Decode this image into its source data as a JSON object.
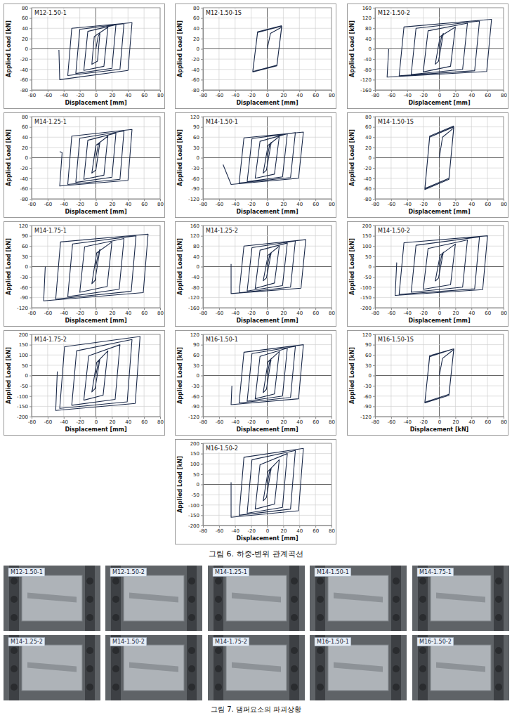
{
  "chart_data": [
    {
      "type": "line",
      "title": "M12-1.50-1",
      "x_label": "Displacement [mm]",
      "y_label": "Applied Load [kN]",
      "x": [
        0,
        3,
        5,
        2,
        -5,
        -2,
        15,
        10,
        -15,
        -10,
        25,
        20,
        -25,
        -20,
        35,
        30,
        -35,
        -30,
        45,
        40,
        -45,
        -46
      ],
      "series": [
        {
          "color": "#1b2a4a",
          "values": [
            0,
            25,
            30,
            -24,
            -30,
            24,
            42,
            -34,
            -42,
            34,
            47,
            -38,
            -48,
            38,
            49,
            -40,
            -52,
            40,
            51,
            -42,
            -60,
            -2
          ]
        }
      ],
      "xlim": [
        -80,
        80
      ],
      "xticks": [
        -80,
        -60,
        -40,
        -20,
        0,
        20,
        40,
        60,
        80
      ],
      "ylim": [
        -80,
        80
      ],
      "yticks": [
        -80,
        -60,
        -40,
        -20,
        0,
        20,
        40,
        60,
        80
      ],
      "grid": true
    },
    {
      "type": "line",
      "title": "M12-1.50-1S",
      "x_label": "Displacement [mm]",
      "y_label": "Applied Load [kN]",
      "x": [
        0,
        4,
        18,
        12,
        -18,
        -12,
        18,
        12,
        -18,
        -12,
        18
      ],
      "series": [
        {
          "color": "#1b2a4a",
          "values": [
            0,
            30,
            42,
            -32,
            -44,
            32,
            44,
            -33,
            -45,
            33,
            45
          ]
        }
      ],
      "xlim": [
        -80,
        80
      ],
      "xticks": [
        -80,
        -60,
        -40,
        -20,
        0,
        20,
        40,
        60,
        80
      ],
      "ylim": [
        -80,
        80
      ],
      "yticks": [
        -80,
        -60,
        -40,
        -20,
        0,
        20,
        40,
        60,
        80
      ],
      "grid": true
    },
    {
      "type": "line",
      "title": "M12-1.50-2",
      "x_label": "Displacement [mm]",
      "y_label": "Applied Load [kN]",
      "x": [
        0,
        3,
        5,
        -1,
        -5,
        1,
        20,
        14,
        -20,
        -14,
        35,
        29,
        -35,
        -29,
        50,
        44,
        -50,
        -44,
        65,
        59,
        -65,
        -63
      ],
      "series": [
        {
          "color": "#1b2a4a",
          "values": [
            0,
            50,
            60,
            -48,
            -60,
            48,
            85,
            -68,
            -90,
            70,
            100,
            -80,
            -100,
            80,
            108,
            -85,
            -105,
            85,
            115,
            -88,
            -110,
            0
          ]
        }
      ],
      "xlim": [
        -80,
        80
      ],
      "xticks": [
        -80,
        -60,
        -40,
        -20,
        0,
        20,
        40,
        60,
        80
      ],
      "ylim": [
        -160,
        160
      ],
      "yticks": [
        -160,
        -120,
        -80,
        -40,
        0,
        40,
        80,
        120,
        160
      ],
      "grid": true
    },
    {
      "type": "line",
      "title": "M14-1.25-1",
      "x_label": "Displacement  [mm]",
      "y_label": "Applied Load [kN]",
      "x": [
        0,
        3,
        5,
        0,
        -5,
        0,
        15,
        10,
        -15,
        -10,
        25,
        20,
        -25,
        -20,
        35,
        30,
        -35,
        -30,
        45,
        40,
        -45,
        -42,
        -45
      ],
      "series": [
        {
          "color": "#1b2a4a",
          "values": [
            0,
            25,
            30,
            -24,
            -30,
            24,
            42,
            -34,
            -42,
            34,
            48,
            -38,
            -48,
            38,
            52,
            -42,
            -52,
            42,
            55,
            -44,
            -55,
            10,
            12
          ]
        }
      ],
      "xlim": [
        -80,
        80
      ],
      "xticks": [
        -80,
        -60,
        -40,
        -20,
        0,
        20,
        40,
        60,
        80
      ],
      "ylim": [
        -80,
        80
      ],
      "yticks": [
        -80,
        -60,
        -40,
        -20,
        0,
        20,
        40,
        60,
        80
      ],
      "grid": true
    },
    {
      "type": "line",
      "title": "M14-1.50-1",
      "x_label": "Displacement [mm]",
      "y_label": "Applied Load [kN]",
      "x": [
        0,
        3,
        5,
        -1,
        -5,
        1,
        15,
        9,
        -15,
        -9,
        25,
        19,
        -25,
        -19,
        35,
        29,
        -35,
        -29,
        45,
        39,
        -45,
        -55
      ],
      "series": [
        {
          "color": "#1b2a4a",
          "values": [
            0,
            38,
            45,
            -36,
            -45,
            36,
            62,
            -48,
            -60,
            48,
            70,
            -56,
            -70,
            56,
            73,
            -58,
            -74,
            58,
            75,
            -60,
            -78,
            -20
          ]
        }
      ],
      "xlim": [
        -80,
        80
      ],
      "xticks": [
        -80,
        -60,
        -40,
        -20,
        0,
        20,
        40,
        60,
        80
      ],
      "ylim": [
        -120,
        120
      ],
      "yticks": [
        -120,
        -90,
        -60,
        -30,
        0,
        30,
        60,
        90,
        120
      ],
      "grid": true
    },
    {
      "type": "line",
      "title": "M14-1.50-1S",
      "x_label": "Displacement [mm]",
      "y_label": "Applied Load [kN]",
      "x": [
        0,
        4,
        18,
        12,
        -18,
        -12,
        18,
        12,
        -18,
        -12,
        18
      ],
      "series": [
        {
          "color": "#1b2a4a",
          "values": [
            0,
            40,
            58,
            -40,
            -60,
            40,
            60,
            -42,
            -62,
            42,
            62
          ]
        }
      ],
      "xlim": [
        -80,
        80
      ],
      "xticks": [
        -80,
        -60,
        -40,
        -20,
        0,
        20,
        40,
        60,
        80
      ],
      "ylim": [
        -80,
        80
      ],
      "yticks": [
        -80,
        -60,
        -40,
        -20,
        0,
        20,
        40,
        60,
        80
      ],
      "grid": true
    },
    {
      "type": "line",
      "title": "M14-1.75-1",
      "x_label": "Displacement [mm]",
      "y_label": "Applied Load [kN]",
      "x": [
        0,
        3,
        5,
        -1,
        -5,
        1,
        20,
        14,
        -20,
        -14,
        35,
        29,
        -35,
        -29,
        50,
        44,
        -50,
        -44,
        65,
        59,
        -65,
        -63
      ],
      "series": [
        {
          "color": "#1b2a4a",
          "values": [
            0,
            40,
            50,
            -40,
            -50,
            40,
            72,
            -58,
            -75,
            58,
            82,
            -66,
            -88,
            66,
            90,
            -72,
            -95,
            72,
            95,
            -76,
            -100,
            0
          ]
        }
      ],
      "xlim": [
        -80,
        80
      ],
      "xticks": [
        -80,
        -60,
        -40,
        -20,
        0,
        20,
        40,
        60,
        80
      ],
      "ylim": [
        -120,
        120
      ],
      "yticks": [
        -120,
        -90,
        -60,
        -30,
        0,
        30,
        60,
        90,
        120
      ],
      "grid": true
    },
    {
      "type": "line",
      "title": "M14-1.25-2",
      "x_label": "Displacement [mm]",
      "y_label": "Applied Load [kN]",
      "x": [
        0,
        3,
        5,
        -1,
        -5,
        1,
        15,
        9,
        -15,
        -9,
        25,
        19,
        -25,
        -19,
        35,
        29,
        -35,
        -29,
        48,
        42,
        -45,
        -45
      ],
      "series": [
        {
          "color": "#1b2a4a",
          "values": [
            0,
            45,
            55,
            -44,
            -55,
            44,
            80,
            -64,
            -85,
            64,
            92,
            -74,
            -95,
            74,
            100,
            -80,
            -102,
            80,
            105,
            -84,
            -105,
            10
          ]
        }
      ],
      "xlim": [
        -80,
        80
      ],
      "xticks": [
        -80,
        -60,
        -40,
        -20,
        0,
        20,
        40,
        60,
        80
      ],
      "ylim": [
        -160,
        160
      ],
      "yticks": [
        -160,
        -120,
        -80,
        -40,
        0,
        40,
        80,
        120,
        160
      ],
      "grid": true
    },
    {
      "type": "line",
      "title": "M14-1.50-2",
      "x_label": "Displacement [mm]",
      "y_label": "Applied Load [kN]",
      "x": [
        0,
        3,
        5,
        -1,
        -5,
        1,
        20,
        14,
        -20,
        -14,
        35,
        29,
        -35,
        -29,
        50,
        44,
        -50,
        -44,
        60,
        54,
        -55,
        -53
      ],
      "series": [
        {
          "color": "#1b2a4a",
          "values": [
            0,
            55,
            70,
            -56,
            -70,
            56,
            110,
            -88,
            -110,
            88,
            130,
            -100,
            -125,
            104,
            145,
            -108,
            -135,
            116,
            150,
            -112,
            -140,
            20
          ]
        }
      ],
      "xlim": [
        -80,
        80
      ],
      "xticks": [
        -80,
        -60,
        -40,
        -20,
        0,
        20,
        40,
        60,
        80
      ],
      "ylim": [
        -200,
        200
      ],
      "yticks": [
        -200,
        -150,
        -100,
        -50,
        0,
        50,
        100,
        150,
        200
      ],
      "grid": true
    },
    {
      "type": "line",
      "title": "M14-1.75-2",
      "x_label": "Displacement [mm]",
      "y_label": "Applied Load [kN]",
      "x": [
        0,
        3,
        5,
        -1,
        -5,
        1,
        15,
        9,
        -15,
        -9,
        30,
        24,
        -30,
        -24,
        45,
        39,
        -45,
        -39,
        55,
        49,
        -50,
        -48
      ],
      "series": [
        {
          "color": "#1b2a4a",
          "values": [
            0,
            65,
            80,
            -64,
            -80,
            64,
            120,
            -96,
            -120,
            96,
            150,
            -116,
            -145,
            120,
            175,
            -128,
            -160,
            140,
            190,
            -136,
            -170,
            20
          ]
        }
      ],
      "xlim": [
        -80,
        80
      ],
      "xticks": [
        -80,
        -60,
        -40,
        -20,
        0,
        20,
        40,
        60,
        80
      ],
      "ylim": [
        -200,
        200
      ],
      "yticks": [
        -200,
        -150,
        -100,
        -50,
        0,
        50,
        100,
        150,
        200
      ],
      "grid": true
    },
    {
      "type": "line",
      "title": "M16-1.50-1",
      "x_label": "Displacement [mm]",
      "y_label": "Applied Load [kN]",
      "x": [
        0,
        3,
        5,
        -1,
        -5,
        1,
        15,
        9,
        -15,
        -9,
        25,
        19,
        -25,
        -19,
        35,
        29,
        -35,
        -29,
        45,
        39,
        -45,
        -44
      ],
      "series": [
        {
          "color": "#1b2a4a",
          "values": [
            0,
            40,
            50,
            -40,
            -50,
            40,
            70,
            -54,
            -68,
            56,
            80,
            -60,
            -75,
            64,
            85,
            -64,
            -80,
            68,
            90,
            -68,
            -85,
            -30
          ]
        }
      ],
      "xlim": [
        -80,
        80
      ],
      "xticks": [
        -80,
        -60,
        -40,
        -20,
        0,
        20,
        40,
        60,
        80
      ],
      "ylim": [
        -120,
        120
      ],
      "yticks": [
        -120,
        -90,
        -60,
        -30,
        0,
        30,
        60,
        90,
        120
      ],
      "grid": true
    },
    {
      "type": "line",
      "title": "M16-1.50-1S",
      "x_label": "Displacement [kN]",
      "y_label": "Applied Load [kN]",
      "x": [
        0,
        4,
        18,
        12,
        -18,
        -12,
        18,
        12,
        -18,
        -12,
        18
      ],
      "series": [
        {
          "color": "#1b2a4a",
          "values": [
            0,
            50,
            76,
            -55,
            -78,
            55,
            78,
            -58,
            -80,
            58,
            78
          ]
        }
      ],
      "xlim": [
        -80,
        80
      ],
      "xticks": [
        -80,
        -60,
        -40,
        -20,
        0,
        20,
        40,
        60,
        80
      ],
      "ylim": [
        -120,
        120
      ],
      "yticks": [
        -120,
        -90,
        -60,
        -30,
        0,
        30,
        60,
        90,
        120
      ],
      "grid": true
    },
    {
      "type": "line",
      "title": "M16-1.50-2",
      "x_label": "Displacement [mm]",
      "y_label": "Applied Load [kN]",
      "x": [
        0,
        3,
        5,
        -1,
        -5,
        1,
        15,
        9,
        -15,
        -9,
        25,
        19,
        -25,
        -19,
        35,
        29,
        -35,
        -29,
        45,
        39,
        -45,
        -45
      ],
      "series": [
        {
          "color": "#1b2a4a",
          "values": [
            0,
            65,
            80,
            -64,
            -80,
            64,
            120,
            -96,
            -120,
            96,
            150,
            -112,
            -140,
            120,
            165,
            -120,
            -150,
            132,
            175,
            -128,
            -160,
            10
          ]
        }
      ],
      "xlim": [
        -80,
        80
      ],
      "xticks": [
        -80,
        -60,
        -40,
        -20,
        0,
        20,
        40,
        60,
        80
      ],
      "ylim": [
        -200,
        200
      ],
      "yticks": [
        -200,
        -150,
        -100,
        -50,
        0,
        50,
        100,
        150,
        200
      ],
      "grid": true
    }
  ],
  "figure_captions": [
    "그림 6. 하중-변위 관계곡선",
    "그림 7. 댐퍼요소의 파괴상황"
  ],
  "photos": [
    {
      "label": "M12-1.50-1"
    },
    {
      "label": "M12-1.50-2"
    },
    {
      "label": "M14-1.25-1"
    },
    {
      "label": "M14-1.50-1"
    },
    {
      "label": "M14-1.75-1"
    },
    {
      "label": "M14-1.25-2"
    },
    {
      "label": "M14-1.50-2"
    },
    {
      "label": "M14-1.75-2"
    },
    {
      "label": "M16-1.50-1"
    },
    {
      "label": "M16-1.50-2"
    }
  ]
}
